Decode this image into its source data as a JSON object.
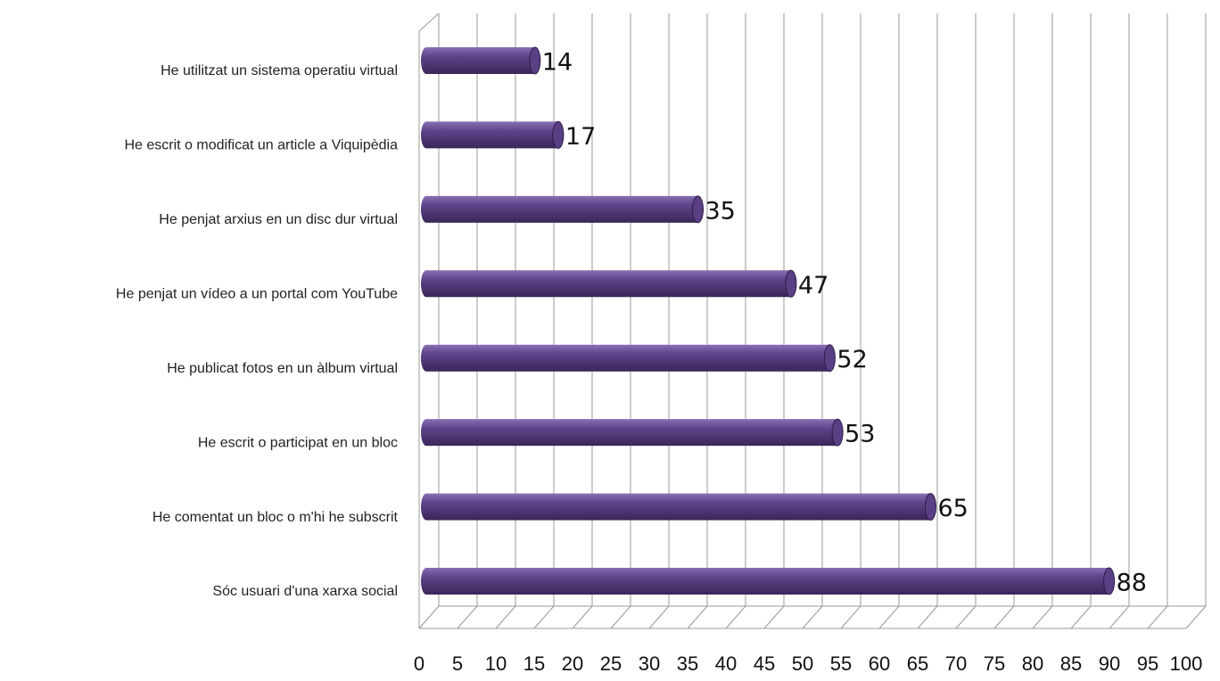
{
  "chart_data": {
    "type": "bar",
    "orientation": "horizontal",
    "categories": [
      "He utilitzat un sistema operatiu virtual",
      "He escrit o modificat un article a Viquipèdia",
      "He penjat arxius en un disc dur virtual",
      "He penjat un vídeo a un portal com YouTube",
      "He publicat fotos en un àlbum virtual",
      "He escrit o participat en un bloc",
      "He comentat un bloc o m'hi he subscrit",
      "Sóc usuari d'una xarxa social"
    ],
    "values": [
      14,
      17,
      35,
      47,
      52,
      53,
      65,
      88
    ],
    "color": "#5b3f85",
    "xlim": [
      0,
      100
    ],
    "xticks": [
      0,
      5,
      10,
      15,
      20,
      25,
      30,
      35,
      40,
      45,
      50,
      55,
      60,
      65,
      70,
      75,
      80,
      85,
      90,
      95,
      100
    ],
    "grid": true
  }
}
